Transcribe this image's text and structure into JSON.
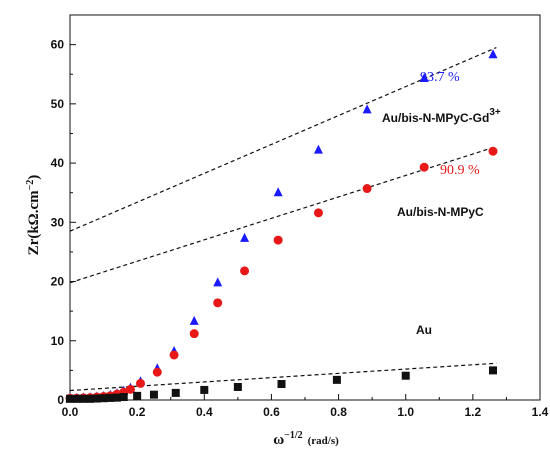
{
  "chart_data": {
    "type": "scatter",
    "xlabel": "ω",
    "xlabel_exp": "−1/2",
    "xlabel_unit": "(rad/s)",
    "ylabel": "Zr(kΩ.cm",
    "ylabel_exp": "−2",
    "ylabel_close": ")",
    "xlim": [
      0.0,
      1.4
    ],
    "ylim": [
      0,
      65
    ],
    "x_ticks": [
      "0.0",
      "0.2",
      "0.4",
      "0.6",
      "0.8",
      "1.0",
      "1.2",
      "1.4"
    ],
    "y_ticks": [
      "0",
      "10",
      "20",
      "30",
      "40",
      "50",
      "60"
    ],
    "grid": false,
    "series": [
      {
        "name": "Au/bis-N-MPyC-Gd",
        "name_sup": "3+",
        "marker": "triangle",
        "color": "#1a1aff",
        "annotation": "93.7 %",
        "x": [
          0.0,
          0.02,
          0.04,
          0.06,
          0.08,
          0.1,
          0.12,
          0.14,
          0.16,
          0.18,
          0.21,
          0.26,
          0.31,
          0.37,
          0.44,
          0.52,
          0.62,
          0.74,
          0.885,
          1.055,
          1.26
        ],
        "y": [
          0.3,
          0.3,
          0.35,
          0.4,
          0.5,
          0.6,
          0.8,
          1.1,
          1.5,
          2.0,
          3.1,
          5.3,
          8.2,
          13.3,
          19.8,
          27.3,
          35.0,
          42.2,
          49.0,
          54.3,
          58.3
        ]
      },
      {
        "name": "Au/bis-N-MPyC",
        "marker": "circle",
        "color": "#e81818",
        "annotation": "90.9 %",
        "x": [
          0.0,
          0.02,
          0.04,
          0.06,
          0.08,
          0.1,
          0.12,
          0.14,
          0.16,
          0.18,
          0.21,
          0.26,
          0.31,
          0.37,
          0.44,
          0.52,
          0.62,
          0.74,
          0.885,
          1.055,
          1.26
        ],
        "y": [
          0.3,
          0.3,
          0.35,
          0.4,
          0.5,
          0.6,
          0.7,
          1.0,
          1.3,
          1.8,
          2.8,
          4.7,
          7.6,
          11.2,
          16.4,
          21.8,
          27.0,
          31.6,
          35.7,
          39.3,
          42.0
        ]
      },
      {
        "name": "Au",
        "marker": "square",
        "color": "#111111",
        "x": [
          0.0,
          0.02,
          0.04,
          0.06,
          0.08,
          0.1,
          0.12,
          0.14,
          0.16,
          0.2,
          0.25,
          0.315,
          0.4,
          0.5,
          0.63,
          0.795,
          1.0,
          1.26
        ],
        "y": [
          0.2,
          0.2,
          0.2,
          0.2,
          0.25,
          0.3,
          0.35,
          0.4,
          0.5,
          0.7,
          0.9,
          1.2,
          1.7,
          2.2,
          2.7,
          3.4,
          4.1,
          5.0
        ]
      }
    ],
    "fit_lines": [
      {
        "series": "Au/bis-N-MPyC-Gd",
        "x": [
          0.0,
          1.27
        ],
        "y": [
          28.5,
          59.5
        ]
      },
      {
        "series": "Au/bis-N-MPyC",
        "x": [
          0.0,
          1.27
        ],
        "y": [
          19.8,
          42.8
        ]
      },
      {
        "series": "Au",
        "x": [
          0.0,
          1.27
        ],
        "y": [
          1.6,
          6.2
        ]
      }
    ]
  }
}
